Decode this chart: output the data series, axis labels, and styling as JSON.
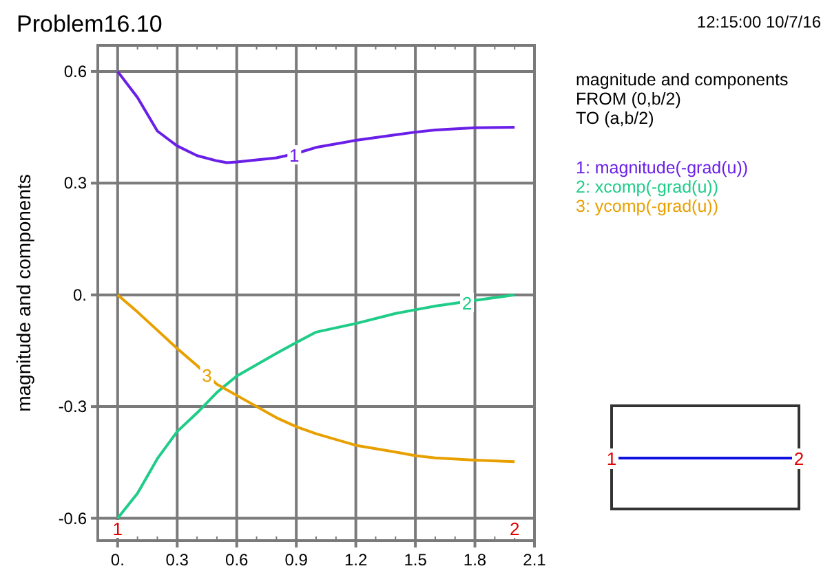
{
  "chart_data": {
    "type": "line",
    "title": "Problem16.10",
    "ylabel": "magnitude and components",
    "x": [
      0,
      0.1,
      0.2,
      0.3,
      0.4,
      0.5,
      0.55,
      0.6,
      0.8,
      0.9,
      1.0,
      1.2,
      1.4,
      1.5,
      1.6,
      1.8,
      2.0
    ],
    "series": [
      {
        "name": "1: magnitude(-grad(u))",
        "color": "#6a1fe8",
        "values": [
          0.6,
          0.53,
          0.44,
          0.4,
          0.374,
          0.36,
          0.355,
          0.357,
          0.368,
          0.38,
          0.396,
          0.415,
          0.43,
          0.437,
          0.443,
          0.449,
          0.45
        ]
      },
      {
        "name": "2: xcomp(-grad(u))",
        "color": "#1fcc88",
        "values": [
          -0.6,
          -0.533,
          -0.44,
          -0.367,
          -0.317,
          -0.262,
          -0.24,
          -0.218,
          -0.157,
          -0.128,
          -0.1,
          -0.077,
          -0.05,
          -0.04,
          -0.03,
          -0.015,
          0
        ]
      },
      {
        "name": "3: ycomp(-grad(u))",
        "color": "#e8a000",
        "values": [
          0,
          -0.046,
          -0.095,
          -0.144,
          -0.19,
          -0.24,
          -0.255,
          -0.27,
          -0.33,
          -0.354,
          -0.373,
          -0.404,
          -0.422,
          -0.432,
          -0.438,
          -0.444,
          -0.448
        ]
      }
    ],
    "xlim": [
      -0.1,
      2.1
    ],
    "ylim": [
      -0.66,
      0.67
    ],
    "xticks": [
      {
        "value": 0,
        "label": "0."
      },
      0.3,
      0.6,
      0.9,
      1.2,
      1.5,
      1.8,
      2.1
    ],
    "yticks": [
      -0.6,
      -0.3,
      {
        "value": 0,
        "label": "0."
      },
      0.3,
      0.6
    ],
    "grid": true,
    "legend": "top right",
    "marker": "none",
    "line_style": "solid",
    "annotations": [
      "12:15:00 10/7/16",
      "magnitude and components",
      "FROM (0,b/2)",
      "TO (a,b/2)",
      {
        "text": "1",
        "x": 0.89,
        "y": 0.376
      },
      {
        "text": "2",
        "x": 1.76,
        "y": -0.02
      },
      {
        "text": "3",
        "x": 0.45,
        "y": -0.215
      },
      "1",
      "2",
      "1",
      "2"
    ]
  }
}
